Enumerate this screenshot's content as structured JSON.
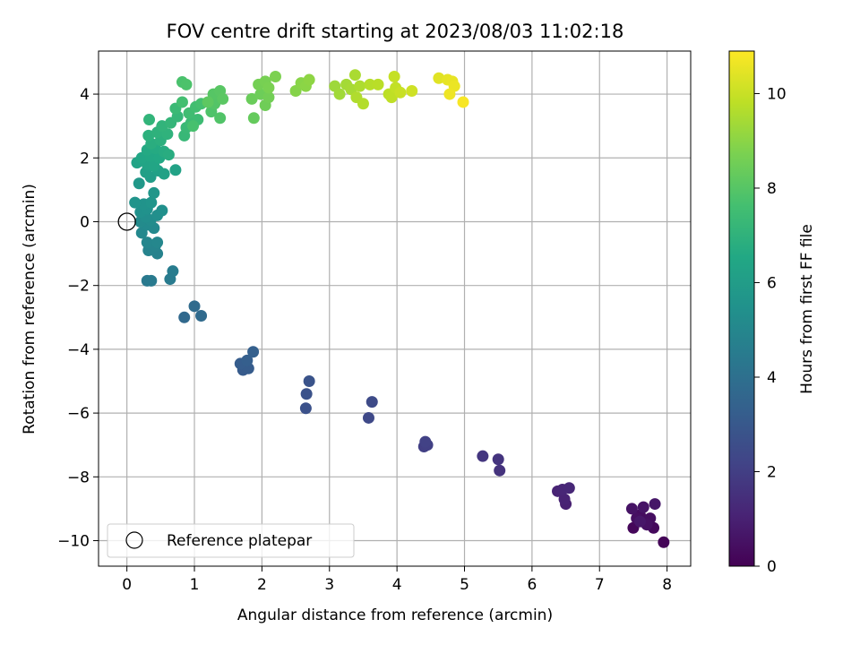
{
  "chart_data": {
    "type": "scatter",
    "title": "FOV centre drift starting at 2023/08/03 11:02:18",
    "xlabel": "Angular distance from reference (arcmin)",
    "ylabel": "Rotation from reference (arcmin)",
    "xlim": [
      -0.42,
      8.35
    ],
    "ylim": [
      -10.8,
      5.35
    ],
    "xticks": [
      "0",
      "1",
      "2",
      "3",
      "4",
      "5",
      "6",
      "7",
      "8"
    ],
    "yticks": [
      "−10",
      "−8",
      "−6",
      "−4",
      "−2",
      "0",
      "2",
      "4"
    ],
    "grid": true,
    "legend": {
      "placement": "lower-left",
      "entries": [
        "Reference platepar"
      ]
    },
    "colorbar": {
      "label": "Hours from first FF file",
      "min": 0,
      "max": 10.9,
      "ticks": [
        "0",
        "2",
        "4",
        "6",
        "8",
        "10"
      ],
      "colormap": "viridis"
    },
    "reference_point": {
      "x": 0,
      "y": 0
    },
    "points": [
      {
        "x": 7.95,
        "y": -10.05,
        "c": 0.1
      },
      {
        "x": 7.5,
        "y": -9.6,
        "c": 0.2
      },
      {
        "x": 7.8,
        "y": -9.6,
        "c": 0.25
      },
      {
        "x": 7.65,
        "y": -9.4,
        "c": 0.3
      },
      {
        "x": 7.6,
        "y": -9.2,
        "c": 0.35
      },
      {
        "x": 7.75,
        "y": -9.3,
        "c": 0.4
      },
      {
        "x": 7.55,
        "y": -9.3,
        "c": 0.45
      },
      {
        "x": 7.7,
        "y": -9.5,
        "c": 0.5
      },
      {
        "x": 7.48,
        "y": -9.0,
        "c": 0.55
      },
      {
        "x": 7.65,
        "y": -8.95,
        "c": 0.6
      },
      {
        "x": 7.82,
        "y": -8.85,
        "c": 0.65
      },
      {
        "x": 7.6,
        "y": -9.4,
        "c": 0.7
      },
      {
        "x": 6.5,
        "y": -8.85,
        "c": 1.0
      },
      {
        "x": 6.48,
        "y": -8.7,
        "c": 1.05
      },
      {
        "x": 6.38,
        "y": -8.45,
        "c": 1.1
      },
      {
        "x": 6.45,
        "y": -8.4,
        "c": 1.15
      },
      {
        "x": 6.55,
        "y": -8.35,
        "c": 1.2
      },
      {
        "x": 5.52,
        "y": -7.8,
        "c": 1.6
      },
      {
        "x": 5.5,
        "y": -7.45,
        "c": 1.65
      },
      {
        "x": 5.27,
        "y": -7.35,
        "c": 1.7
      },
      {
        "x": 4.4,
        "y": -7.05,
        "c": 2.0
      },
      {
        "x": 4.45,
        "y": -7.0,
        "c": 2.05
      },
      {
        "x": 4.42,
        "y": -6.9,
        "c": 2.1
      },
      {
        "x": 3.58,
        "y": -6.15,
        "c": 2.4
      },
      {
        "x": 3.63,
        "y": -5.65,
        "c": 2.45
      },
      {
        "x": 2.65,
        "y": -5.85,
        "c": 2.7
      },
      {
        "x": 2.66,
        "y": -5.4,
        "c": 2.75
      },
      {
        "x": 2.7,
        "y": -5.0,
        "c": 2.8
      },
      {
        "x": 1.72,
        "y": -4.65,
        "c": 3.1
      },
      {
        "x": 1.8,
        "y": -4.6,
        "c": 3.15
      },
      {
        "x": 1.68,
        "y": -4.45,
        "c": 3.2
      },
      {
        "x": 1.78,
        "y": -4.35,
        "c": 3.25
      },
      {
        "x": 1.87,
        "y": -4.08,
        "c": 3.3
      },
      {
        "x": 0.85,
        "y": -3.0,
        "c": 3.7
      },
      {
        "x": 1.1,
        "y": -2.95,
        "c": 3.75
      },
      {
        "x": 1.0,
        "y": -2.65,
        "c": 3.8
      },
      {
        "x": 0.3,
        "y": -1.85,
        "c": 4.4
      },
      {
        "x": 0.36,
        "y": -1.85,
        "c": 4.45
      },
      {
        "x": 0.64,
        "y": -1.8,
        "c": 4.5
      },
      {
        "x": 0.68,
        "y": -1.55,
        "c": 4.55
      },
      {
        "x": 0.45,
        "y": -1.0,
        "c": 4.8
      },
      {
        "x": 0.32,
        "y": -0.9,
        "c": 4.85
      },
      {
        "x": 0.42,
        "y": -0.75,
        "c": 4.9
      },
      {
        "x": 0.3,
        "y": -0.65,
        "c": 4.95
      },
      {
        "x": 0.45,
        "y": -0.65,
        "c": 5.0
      },
      {
        "x": 0.22,
        "y": -0.35,
        "c": 5.05
      },
      {
        "x": 0.4,
        "y": -0.2,
        "c": 5.1
      },
      {
        "x": 0.3,
        "y": -0.1,
        "c": 5.15
      },
      {
        "x": 0.2,
        "y": 0.0,
        "c": 5.2
      },
      {
        "x": 0.35,
        "y": 0.05,
        "c": 5.25
      },
      {
        "x": 0.28,
        "y": 0.15,
        "c": 5.3
      },
      {
        "x": 0.45,
        "y": 0.2,
        "c": 5.35
      },
      {
        "x": 0.52,
        "y": 0.35,
        "c": 5.4
      },
      {
        "x": 0.2,
        "y": 0.3,
        "c": 5.45
      },
      {
        "x": 0.3,
        "y": 0.4,
        "c": 5.5
      },
      {
        "x": 0.25,
        "y": 0.55,
        "c": 5.55
      },
      {
        "x": 0.12,
        "y": 0.6,
        "c": 5.6
      },
      {
        "x": 0.36,
        "y": 0.6,
        "c": 5.65
      },
      {
        "x": 0.4,
        "y": 0.9,
        "c": 5.7
      },
      {
        "x": 0.18,
        "y": 1.2,
        "c": 5.8
      },
      {
        "x": 0.35,
        "y": 1.4,
        "c": 6.0
      },
      {
        "x": 0.28,
        "y": 1.55,
        "c": 6.1
      },
      {
        "x": 0.46,
        "y": 1.6,
        "c": 6.15
      },
      {
        "x": 0.55,
        "y": 1.5,
        "c": 6.2
      },
      {
        "x": 0.72,
        "y": 1.62,
        "c": 6.25
      },
      {
        "x": 0.15,
        "y": 1.85,
        "c": 6.3
      },
      {
        "x": 0.3,
        "y": 1.8,
        "c": 6.35
      },
      {
        "x": 0.4,
        "y": 1.75,
        "c": 6.4
      },
      {
        "x": 0.22,
        "y": 2.0,
        "c": 6.45
      },
      {
        "x": 0.35,
        "y": 2.05,
        "c": 6.5
      },
      {
        "x": 0.48,
        "y": 2.0,
        "c": 6.55
      },
      {
        "x": 0.3,
        "y": 2.25,
        "c": 6.6
      },
      {
        "x": 0.42,
        "y": 2.3,
        "c": 6.65
      },
      {
        "x": 0.55,
        "y": 2.2,
        "c": 6.7
      },
      {
        "x": 0.62,
        "y": 2.1,
        "c": 6.75
      },
      {
        "x": 0.36,
        "y": 2.45,
        "c": 6.8
      },
      {
        "x": 0.5,
        "y": 2.55,
        "c": 6.85
      },
      {
        "x": 0.32,
        "y": 2.7,
        "c": 6.9
      },
      {
        "x": 0.45,
        "y": 2.8,
        "c": 6.95
      },
      {
        "x": 0.6,
        "y": 2.75,
        "c": 7.0
      },
      {
        "x": 0.52,
        "y": 3.0,
        "c": 7.05
      },
      {
        "x": 0.33,
        "y": 3.2,
        "c": 7.1
      },
      {
        "x": 0.65,
        "y": 3.1,
        "c": 7.15
      },
      {
        "x": 0.75,
        "y": 3.3,
        "c": 7.2
      },
      {
        "x": 0.85,
        "y": 2.7,
        "c": 7.25
      },
      {
        "x": 0.88,
        "y": 2.95,
        "c": 7.3
      },
      {
        "x": 0.72,
        "y": 3.55,
        "c": 7.35
      },
      {
        "x": 0.95,
        "y": 3.1,
        "c": 7.4
      },
      {
        "x": 1.05,
        "y": 3.2,
        "c": 7.45
      },
      {
        "x": 0.92,
        "y": 3.4,
        "c": 7.5
      },
      {
        "x": 1.02,
        "y": 3.6,
        "c": 7.55
      },
      {
        "x": 0.82,
        "y": 3.75,
        "c": 7.6
      },
      {
        "x": 1.1,
        "y": 3.7,
        "c": 7.65
      },
      {
        "x": 0.98,
        "y": 3.0,
        "c": 7.7
      },
      {
        "x": 0.82,
        "y": 4.38,
        "c": 7.75
      },
      {
        "x": 0.88,
        "y": 4.3,
        "c": 7.8
      },
      {
        "x": 1.25,
        "y": 3.45,
        "c": 7.85
      },
      {
        "x": 1.38,
        "y": 3.25,
        "c": 7.9
      },
      {
        "x": 1.3,
        "y": 3.7,
        "c": 7.95
      },
      {
        "x": 1.28,
        "y": 4.0,
        "c": 8.0
      },
      {
        "x": 1.38,
        "y": 4.1,
        "c": 8.05
      },
      {
        "x": 1.42,
        "y": 3.85,
        "c": 8.1
      },
      {
        "x": 1.2,
        "y": 3.75,
        "c": 8.15
      },
      {
        "x": 1.88,
        "y": 3.25,
        "c": 8.3
      },
      {
        "x": 1.85,
        "y": 3.85,
        "c": 8.4
      },
      {
        "x": 1.98,
        "y": 4.0,
        "c": 8.45
      },
      {
        "x": 2.05,
        "y": 3.65,
        "c": 8.5
      },
      {
        "x": 2.1,
        "y": 3.9,
        "c": 8.55
      },
      {
        "x": 1.95,
        "y": 4.3,
        "c": 8.6
      },
      {
        "x": 2.05,
        "y": 4.4,
        "c": 8.65
      },
      {
        "x": 2.1,
        "y": 4.2,
        "c": 8.7
      },
      {
        "x": 2.2,
        "y": 4.55,
        "c": 8.75
      },
      {
        "x": 2.5,
        "y": 4.1,
        "c": 8.9
      },
      {
        "x": 2.58,
        "y": 4.35,
        "c": 8.95
      },
      {
        "x": 2.65,
        "y": 4.25,
        "c": 9.0
      },
      {
        "x": 2.7,
        "y": 4.45,
        "c": 9.05
      },
      {
        "x": 3.08,
        "y": 4.25,
        "c": 9.3
      },
      {
        "x": 3.15,
        "y": 4.0,
        "c": 9.35
      },
      {
        "x": 3.25,
        "y": 4.3,
        "c": 9.4
      },
      {
        "x": 3.32,
        "y": 4.15,
        "c": 9.45
      },
      {
        "x": 3.38,
        "y": 4.6,
        "c": 9.5
      },
      {
        "x": 3.45,
        "y": 4.25,
        "c": 9.55
      },
      {
        "x": 3.4,
        "y": 3.9,
        "c": 9.6
      },
      {
        "x": 3.5,
        "y": 3.7,
        "c": 9.65
      },
      {
        "x": 3.6,
        "y": 4.3,
        "c": 9.7
      },
      {
        "x": 3.72,
        "y": 4.3,
        "c": 9.75
      },
      {
        "x": 3.88,
        "y": 4.0,
        "c": 9.8
      },
      {
        "x": 3.92,
        "y": 3.9,
        "c": 9.85
      },
      {
        "x": 3.98,
        "y": 4.2,
        "c": 9.9
      },
      {
        "x": 3.96,
        "y": 4.55,
        "c": 9.95
      },
      {
        "x": 4.05,
        "y": 4.05,
        "c": 10.0
      },
      {
        "x": 4.22,
        "y": 4.1,
        "c": 10.1
      },
      {
        "x": 4.62,
        "y": 4.5,
        "c": 10.4
      },
      {
        "x": 4.75,
        "y": 4.45,
        "c": 10.5
      },
      {
        "x": 4.82,
        "y": 4.4,
        "c": 10.55
      },
      {
        "x": 4.85,
        "y": 4.25,
        "c": 10.6
      },
      {
        "x": 4.78,
        "y": 4.0,
        "c": 10.65
      },
      {
        "x": 4.98,
        "y": 3.75,
        "c": 10.8
      }
    ]
  }
}
